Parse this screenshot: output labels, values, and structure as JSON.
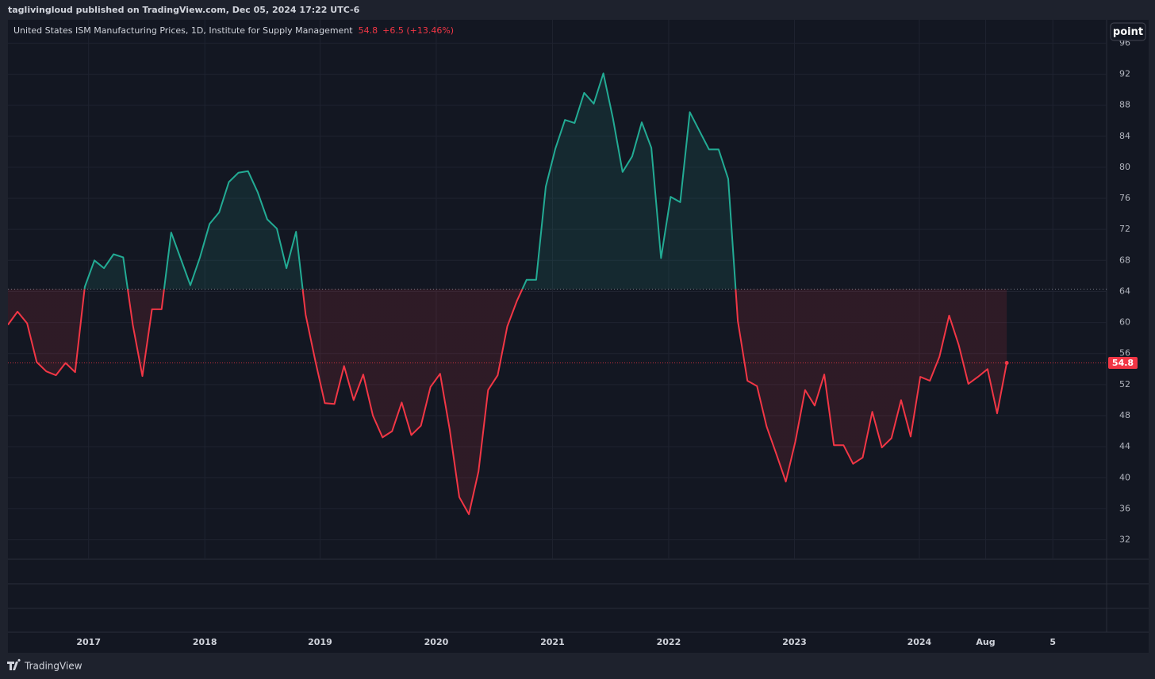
{
  "header": "taglivingloud published on TradingView.com, Dec 05, 2024 17:22 UTC-6",
  "button": "point",
  "footer": "TradingView",
  "chart_data": {
    "type": "baseline",
    "title": "United States ISM Manufacturing Prices, 1D, Institute for Supply Management",
    "change": "+6.5 (+13.46%)",
    "baseline": 64.3,
    "color_above": "#22ab94",
    "color_below": "#f23645",
    "grid": true,
    "values": [
      59.7,
      61.4,
      59.9,
      54.9,
      53.7,
      53.2,
      54.8,
      53.6,
      64.6,
      68.0,
      67.0,
      68.8,
      68.4,
      59.7,
      53.1,
      61.7,
      61.7,
      71.6,
      68.2,
      64.8,
      68.4,
      72.7,
      74.2,
      78.1,
      79.3,
      79.5,
      76.8,
      73.3,
      72.1,
      67.0,
      71.7,
      61.0,
      55.1,
      49.6,
      49.5,
      54.4,
      50.0,
      53.3,
      48.0,
      45.2,
      46.0,
      49.7,
      45.5,
      46.7,
      51.7,
      53.4,
      46.2,
      37.5,
      35.3,
      40.8,
      51.3,
      53.2,
      59.5,
      62.8,
      65.5,
      65.5,
      77.5,
      82.4,
      86.1,
      85.7,
      89.6,
      88.2,
      92.1,
      86.3,
      79.4,
      81.4,
      85.8,
      82.5,
      68.3,
      76.2,
      75.5,
      87.1,
      84.7,
      82.3,
      82.3,
      78.5,
      60.2,
      52.5,
      51.8,
      46.6,
      43.1,
      39.5,
      44.7,
      51.3,
      49.3,
      53.3,
      44.2,
      44.2,
      41.8,
      42.6,
      48.5,
      43.9,
      45.1,
      50.0,
      45.3,
      53.0,
      52.5,
      55.6,
      60.9,
      57.1,
      52.1,
      53.0,
      54.0,
      48.3,
      54.8
    ],
    "xlim": [
      0,
      114.4
    ],
    "xticks": [
      {
        "value": 8.4,
        "label": "2017"
      },
      {
        "value": 20.5,
        "label": "2018"
      },
      {
        "value": 32.5,
        "label": "2019"
      },
      {
        "value": 44.6,
        "label": "2020"
      },
      {
        "value": 56.7,
        "label": "2021"
      },
      {
        "value": 68.8,
        "label": "2022"
      },
      {
        "value": 81.9,
        "label": "2023"
      },
      {
        "value": 94.9,
        "label": "2024"
      },
      {
        "value": 101.8,
        "label": "Aug"
      },
      {
        "value": 108.8,
        "label": "5"
      }
    ],
    "ylim": [
      29.5,
      99
    ],
    "yticks": [
      32,
      36,
      40,
      44,
      48,
      52,
      56,
      60,
      64,
      68,
      72,
      76,
      80,
      84,
      88,
      92,
      96
    ]
  }
}
